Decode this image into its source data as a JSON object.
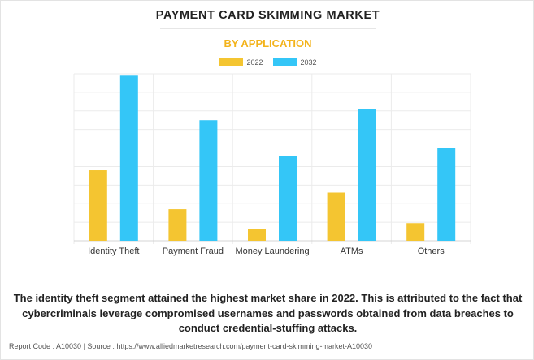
{
  "title": "PAYMENT CARD SKIMMING MARKET",
  "subtitle": "BY APPLICATION",
  "colors": {
    "series_2022": "#f4c531",
    "series_2032": "#34c6f7",
    "accent": "#f3b31b"
  },
  "chart_data": {
    "type": "bar",
    "categories": [
      "Identity Theft",
      "Payment Fraud",
      "Money Laundering",
      "ATMs",
      "Others"
    ],
    "series": [
      {
        "name": "2022",
        "values": [
          3.8,
          1.7,
          0.65,
          2.6,
          0.95
        ]
      },
      {
        "name": "2032",
        "values": [
          8.9,
          6.5,
          4.55,
          7.1,
          5.0
        ]
      }
    ],
    "ylim": [
      0,
      9
    ],
    "grid": true,
    "legend": "top-center",
    "xlabel": "",
    "ylabel": ""
  },
  "caption": "The identity theft segment attained the highest market share in 2022. This is attributed to the fact that cybercriminals leverage compromised usernames and passwords obtained from data breaches to conduct credential-stuffing attacks.",
  "footer": "Report Code : A10030  |  Source : https://www.alliedmarketresearch.com/payment-card-skimming-market-A10030"
}
